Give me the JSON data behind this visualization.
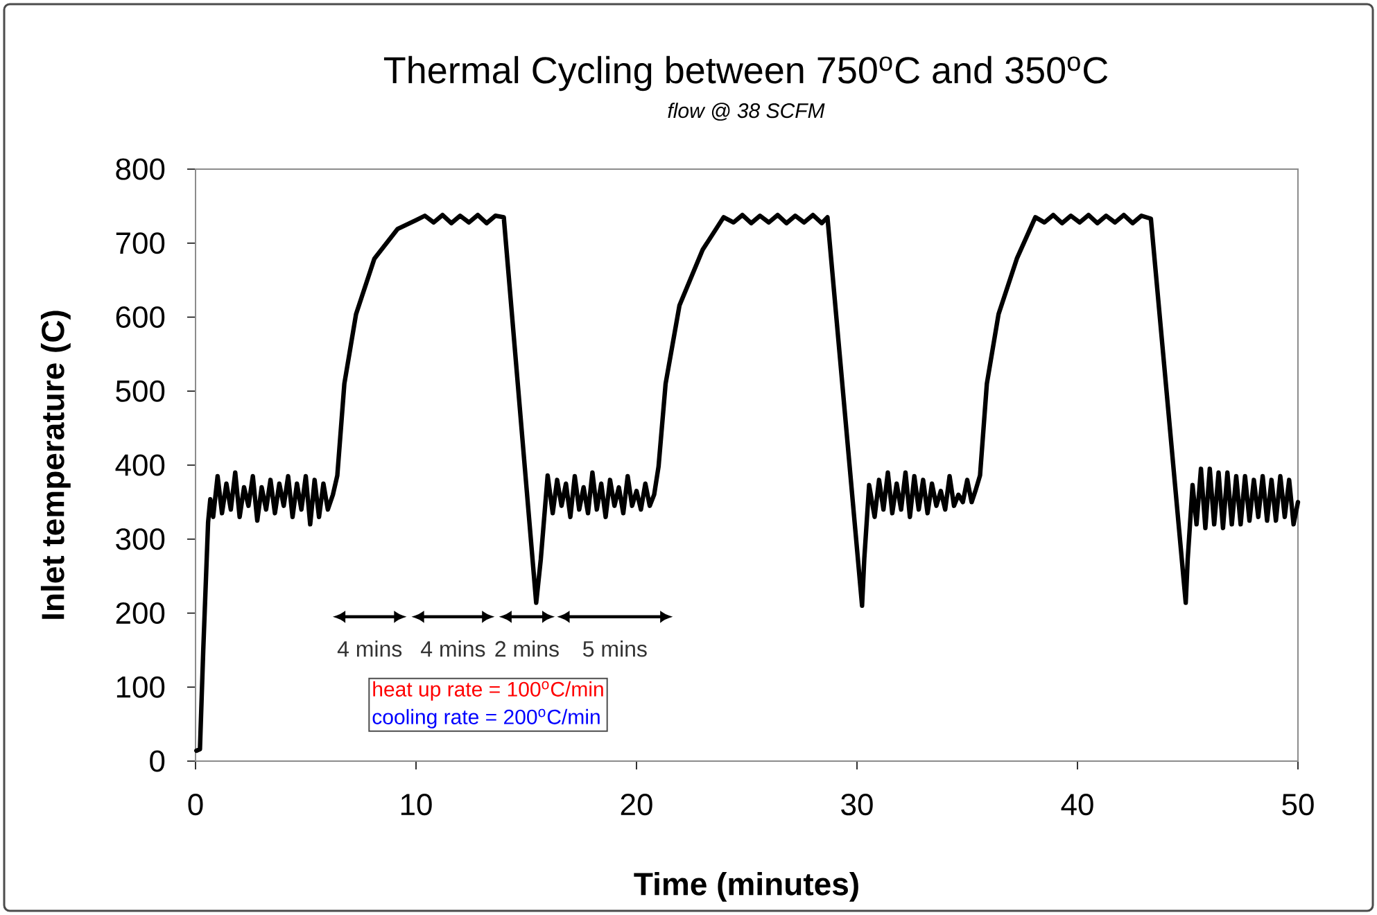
{
  "chart_data": {
    "type": "line",
    "title": "Thermal Cycling between 750$^{o}$C and 350$^{o}$C",
    "subtitle": "flow @ 38 SCFM",
    "xlabel": "Time (minutes)",
    "ylabel": "Inlet temperature (C)",
    "xlim": [
      0,
      50
    ],
    "ylim": [
      0,
      800
    ],
    "xticks": [
      0,
      10,
      20,
      30,
      40,
      50
    ],
    "yticks": [
      0,
      100,
      200,
      300,
      400,
      500,
      600,
      700,
      800
    ],
    "marker": "none",
    "line_style": "solid",
    "series": [
      {
        "color": "#000000",
        "x": [
          0.04,
          0.2,
          0.35,
          0.57,
          0.67,
          0.8,
          1.0,
          1.2,
          1.4,
          1.6,
          1.8,
          2.0,
          2.2,
          2.4,
          2.6,
          2.8,
          3.0,
          3.2,
          3.4,
          3.6,
          3.8,
          4.0,
          4.2,
          4.4,
          4.6,
          4.8,
          5.0,
          5.2,
          5.4,
          5.6,
          5.8,
          6.0,
          6.23,
          6.43,
          6.75,
          7.28,
          8.11,
          9.16,
          10.0,
          10.4,
          10.8,
          11.2,
          11.6,
          12.0,
          12.4,
          12.8,
          13.2,
          13.6,
          13.98,
          15.45,
          15.66,
          15.97,
          16.2,
          16.4,
          16.6,
          16.8,
          17.0,
          17.2,
          17.4,
          17.6,
          17.8,
          18.0,
          18.2,
          18.4,
          18.6,
          18.8,
          19.0,
          19.2,
          19.4,
          19.6,
          19.8,
          20.0,
          20.2,
          20.4,
          20.6,
          20.8,
          21.0,
          21.32,
          21.95,
          23.0,
          23.95,
          24.4,
          24.8,
          25.2,
          25.6,
          26.0,
          26.4,
          26.8,
          27.2,
          27.6,
          28.0,
          28.4,
          28.66,
          30.23,
          30.33,
          30.55,
          30.8,
          31.0,
          31.2,
          31.4,
          31.6,
          31.8,
          32.0,
          32.2,
          32.4,
          32.6,
          32.8,
          33.0,
          33.2,
          33.4,
          33.6,
          33.8,
          34.0,
          34.2,
          34.4,
          34.6,
          34.8,
          35.0,
          35.2,
          35.37,
          35.58,
          35.89,
          36.42,
          37.25,
          38.09,
          38.5,
          38.9,
          39.3,
          39.7,
          40.1,
          40.5,
          40.9,
          41.3,
          41.7,
          42.1,
          42.5,
          42.9,
          43.33,
          44.91,
          45.0,
          45.22,
          45.4,
          45.6,
          45.8,
          46.0,
          46.2,
          46.4,
          46.6,
          46.8,
          47.0,
          47.2,
          47.4,
          47.6,
          47.8,
          48.0,
          48.2,
          48.4,
          48.6,
          48.8,
          49.0,
          49.2,
          49.4,
          49.6,
          49.8,
          50.0
        ],
        "values": [
          14,
          16,
          150,
          323,
          354,
          330,
          385,
          335,
          375,
          340,
          390,
          330,
          370,
          345,
          385,
          325,
          370,
          340,
          380,
          335,
          375,
          345,
          385,
          330,
          375,
          340,
          385,
          320,
          380,
          330,
          375,
          340,
          360,
          386,
          510,
          604,
          679,
          719,
          731,
          737,
          728,
          738,
          727,
          737,
          728,
          738,
          727,
          737,
          735,
          214,
          273,
          386,
          335,
          380,
          345,
          375,
          330,
          385,
          340,
          370,
          335,
          390,
          340,
          375,
          330,
          380,
          345,
          370,
          335,
          385,
          345,
          365,
          340,
          375,
          345,
          360,
          398,
          510,
          616,
          691,
          735,
          728,
          738,
          727,
          737,
          728,
          738,
          727,
          737,
          728,
          738,
          727,
          735,
          210,
          273,
          373,
          330,
          380,
          340,
          390,
          335,
          375,
          340,
          390,
          330,
          385,
          340,
          380,
          335,
          375,
          345,
          365,
          340,
          385,
          345,
          360,
          350,
          380,
          350,
          365,
          386,
          510,
          604,
          679,
          735,
          728,
          738,
          727,
          737,
          728,
          738,
          727,
          737,
          728,
          738,
          727,
          737,
          733,
          214,
          273,
          373,
          320,
          395,
          315,
          395,
          320,
          390,
          315,
          390,
          320,
          385,
          320,
          385,
          325,
          380,
          330,
          385,
          325,
          380,
          325,
          385,
          330,
          380,
          320,
          350
        ]
      }
    ],
    "annotations": [
      "4 mins",
      "4 mins",
      "2 mins",
      "5 mins",
      "heat up rate = 100$^{o}$C/min",
      "cooling rate = 200$^{o}$C/min"
    ]
  }
}
